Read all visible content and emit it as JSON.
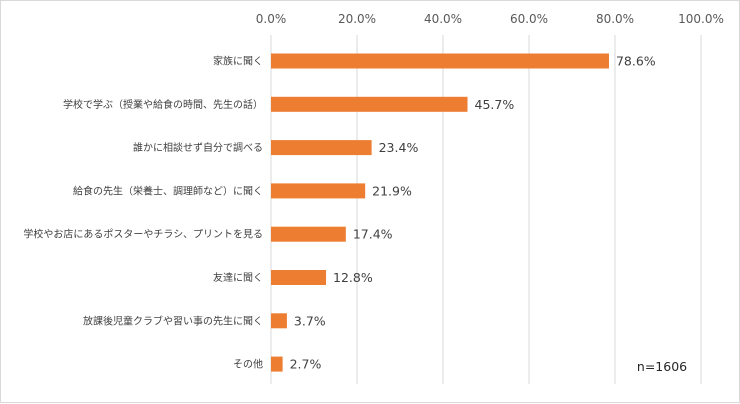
{
  "chart_data": {
    "type": "bar",
    "orientation": "horizontal",
    "categories": [
      "家族に聞く",
      "学校で学ぶ（授業や給食の時間、先生の話）",
      "誰かに相談せず自分で調べる",
      "給食の先生（栄養士、調理師など）に聞く",
      "学校やお店にあるポスターやチラシ、プリントを見る",
      "友達に聞く",
      "放課後児童クラブや習い事の先生に聞く",
      "その他"
    ],
    "values": [
      78.6,
      45.7,
      23.4,
      21.9,
      17.4,
      12.8,
      3.7,
      2.7
    ],
    "data_labels": [
      "78.6%",
      "45.7%",
      "23.4%",
      "21.9%",
      "17.4%",
      "12.8%",
      "3.7%",
      "2.7%"
    ],
    "xlim": [
      0,
      100
    ],
    "x_ticks": [
      0,
      20,
      40,
      60,
      80,
      100
    ],
    "x_tick_labels": [
      "0.0%",
      "20.0%",
      "40.0%",
      "60.0%",
      "80.0%",
      "100.0%"
    ],
    "x_axis_position": "top",
    "grid": true,
    "bar_color": "#ED7D31",
    "grid_color": "#d9d9d9",
    "annotation": "n=1606"
  }
}
